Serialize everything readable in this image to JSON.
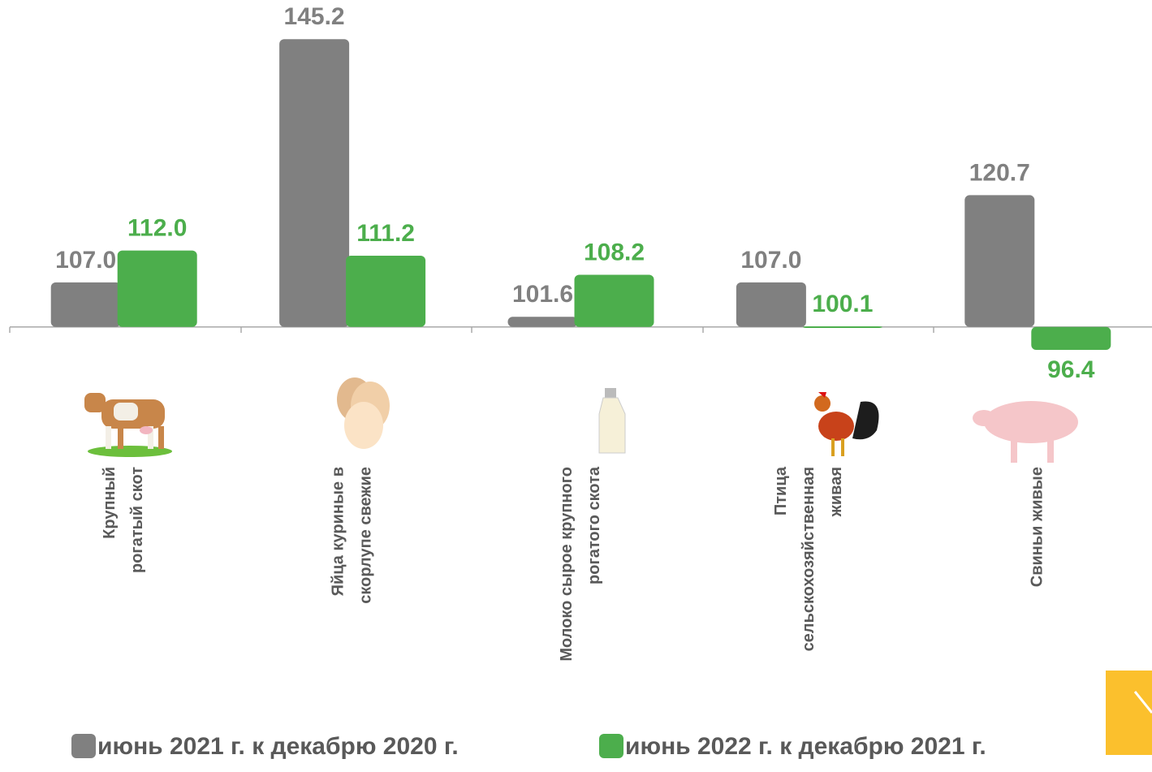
{
  "chart_data": {
    "type": "bar",
    "categories": [
      [
        "Крупный",
        "рогатый скот"
      ],
      [
        "Яйца куриные в",
        "скорлупе свежие"
      ],
      [
        "Молоко сырое крупного",
        "рогатого скота"
      ],
      [
        "Птица",
        "сельскохозяйственная",
        "живая"
      ],
      [
        "Свиньи живые"
      ]
    ],
    "series": [
      {
        "name": "июнь 2021 г. к декабрю 2020 г.",
        "color": "#808080",
        "values": [
          107.0,
          145.2,
          101.6,
          107.0,
          120.7
        ],
        "value_labels": [
          "107.0",
          "145.2",
          "101.6",
          "107.0",
          "120.7"
        ]
      },
      {
        "name": "июнь 2022 г. к декабрю 2021 г.",
        "color": "#4cae4c",
        "values": [
          112.0,
          111.2,
          108.2,
          100.1,
          96.4
        ],
        "value_labels": [
          "112.0",
          "111.2",
          "108.2",
          "100.1",
          "96.4"
        ]
      }
    ],
    "baseline": 100,
    "ylim": [
      95,
      146
    ]
  }
}
